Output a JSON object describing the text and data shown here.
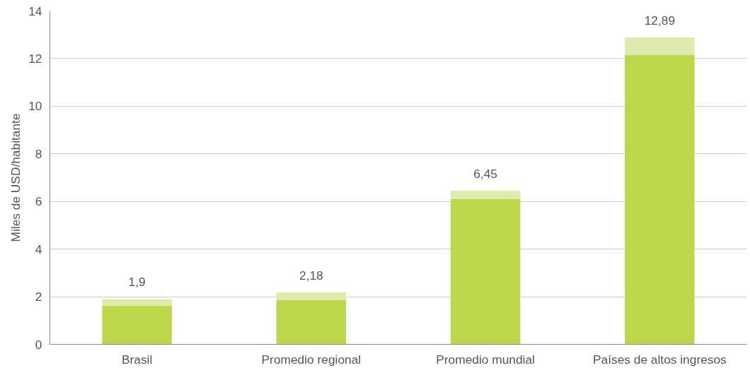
{
  "chart_data": {
    "type": "bar",
    "stacked": true,
    "ylabel": "Miles de USD/habitante",
    "categories": [
      "Brasil",
      "Promedio regional",
      "Promedio mundial",
      "Países de altos ingresos"
    ],
    "series": [
      {
        "color": "#bcd74c",
        "values": [
          1.62,
          1.86,
          6.1,
          12.16
        ]
      },
      {
        "color": "#dfeaaf",
        "values": [
          0.28,
          0.32,
          0.35,
          0.73
        ]
      }
    ],
    "totals": [
      "1,9",
      "2,18",
      "6,45",
      "12,89"
    ],
    "ylim": [
      0,
      14
    ],
    "yticks": [
      0,
      2,
      4,
      6,
      8,
      10,
      12,
      14
    ],
    "grid": "y"
  }
}
